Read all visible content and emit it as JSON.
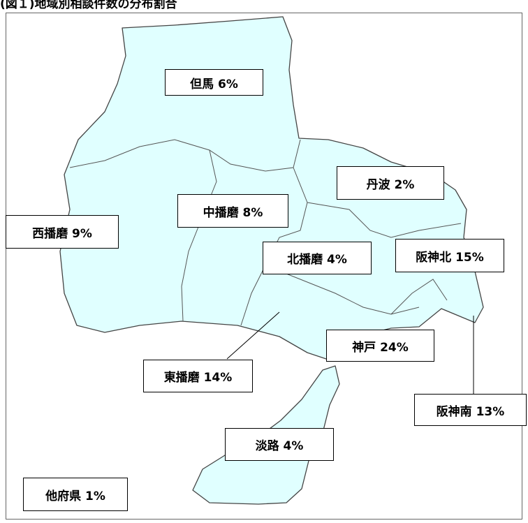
{
  "title": "(図１)地域別相談件数の分布割合",
  "regions": [
    {
      "label": "但馬 6%"
    },
    {
      "label": "丹波 2%"
    },
    {
      "label": "中播磨 8%"
    },
    {
      "label": "西播磨 9%"
    },
    {
      "label": "北播磨 4%"
    },
    {
      "label": "阪神北 15%"
    },
    {
      "label": "神戸 24%"
    },
    {
      "label": "東播磨 14%"
    },
    {
      "label": "阪神南 13%"
    },
    {
      "label": "淡路 4%"
    },
    {
      "label": "他府県 1%"
    }
  ]
}
